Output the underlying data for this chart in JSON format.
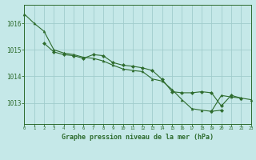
{
  "xlabel": "Graphe pression niveau de la mer (hPa)",
  "background_color": "#c5e8e8",
  "grid_color": "#a0cccc",
  "line_color": "#2d6b2d",
  "xlim": [
    0,
    23
  ],
  "ylim": [
    1012.2,
    1016.7
  ],
  "yticks": [
    1013,
    1014,
    1015,
    1016
  ],
  "xticks": [
    0,
    1,
    2,
    3,
    4,
    5,
    6,
    7,
    8,
    9,
    10,
    11,
    12,
    13,
    14,
    15,
    16,
    17,
    18,
    19,
    20,
    21,
    22,
    23
  ],
  "series1_x": [
    0,
    1,
    2,
    3,
    4,
    5,
    6,
    7,
    8,
    9,
    10,
    11,
    12,
    13,
    14,
    15,
    16,
    17,
    18,
    19,
    20,
    21,
    22,
    23
  ],
  "series1_y": [
    1016.35,
    1016.0,
    1015.7,
    1015.0,
    1014.88,
    1014.82,
    1014.72,
    1014.68,
    1014.58,
    1014.42,
    1014.28,
    1014.22,
    1014.18,
    1013.9,
    1013.82,
    1013.5,
    1013.12,
    1012.78,
    1012.72,
    1012.68,
    1013.28,
    1013.22,
    1013.18,
    1013.12
  ],
  "series2_x": [
    2,
    3,
    4,
    5,
    6,
    7,
    8,
    9,
    10,
    11,
    12,
    13,
    14,
    15,
    16,
    17,
    18,
    19,
    20,
    21,
    22
  ],
  "series2_y": [
    1015.25,
    1014.92,
    1014.82,
    1014.78,
    1014.68,
    1014.82,
    1014.78,
    1014.52,
    1014.42,
    1014.38,
    1014.32,
    1014.22,
    1013.88,
    1013.42,
    1013.38,
    1013.38,
    1013.42,
    1013.38,
    1012.88,
    1013.28,
    1013.18
  ],
  "series3_x": [
    19,
    20
  ],
  "series3_y": [
    1012.68,
    1012.72
  ]
}
